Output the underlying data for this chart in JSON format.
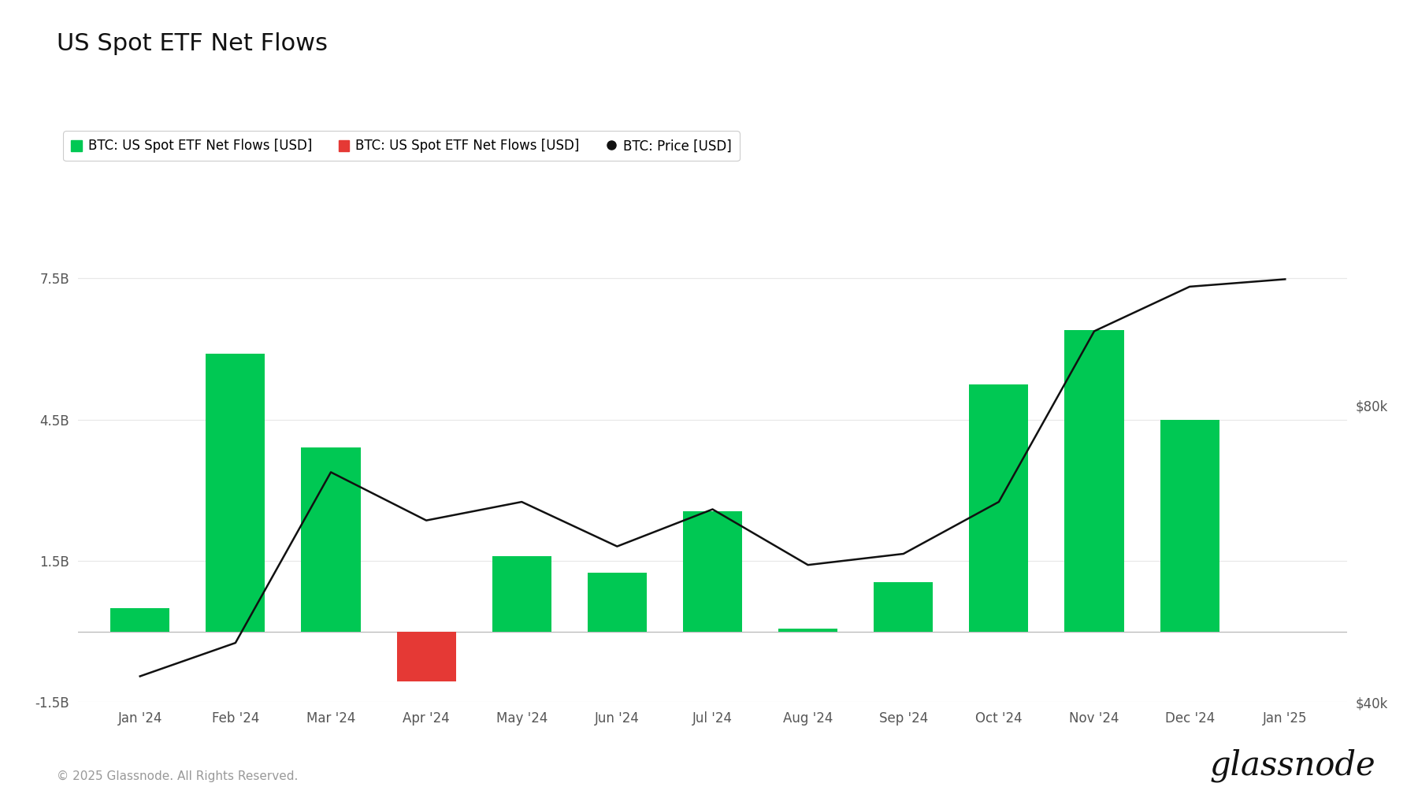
{
  "title": "US Spot ETF Net Flows",
  "legend_items": [
    {
      "label": "BTC: US Spot ETF Net Flows [USD]",
      "color": "#00c853",
      "type": "bar"
    },
    {
      "label": "BTC: US Spot ETF Net Flows [USD]",
      "color": "#e53935",
      "type": "bar"
    },
    {
      "label": "BTC: Price [USD]",
      "color": "#111111",
      "type": "line"
    }
  ],
  "months": [
    "Jan '24",
    "Feb '24",
    "Mar '24",
    "Apr '24",
    "May '24",
    "Jun '24",
    "Jul '24",
    "Aug '24",
    "Sep '24",
    "Oct '24",
    "Nov '24",
    "Dec '24",
    "Jan '25"
  ],
  "bar_values": [
    0.5,
    5.9,
    3.9,
    -1.05,
    1.6,
    1.25,
    2.55,
    0.06,
    1.05,
    5.25,
    6.4,
    4.5,
    null
  ],
  "bar_colors": [
    "#00c853",
    "#00c853",
    "#00c853",
    "#e53935",
    "#00c853",
    "#00c853",
    "#00c853",
    "#00c853",
    "#00c853",
    "#00c853",
    "#00c853",
    "#00c853",
    null
  ],
  "price_x": [
    0,
    1,
    2,
    3,
    4,
    5,
    6,
    7,
    8,
    9,
    10,
    11,
    12
  ],
  "price_values": [
    43500,
    48000,
    71000,
    64500,
    67000,
    61000,
    66000,
    58500,
    60000,
    67000,
    90000,
    96000,
    97000
  ],
  "ylim": [
    -1.5,
    9.0
  ],
  "yticks": [
    -1.5,
    0,
    1.5,
    4.5,
    7.5
  ],
  "ytick_labels": [
    "-1.5B",
    "",
    "1.5B",
    "4.5B",
    "7.5B"
  ],
  "price_ylim": [
    40000,
    106667
  ],
  "price_yticks": [
    40000,
    80000
  ],
  "price_ytick_labels": [
    "$40k",
    "$80k"
  ],
  "background_color": "#ffffff",
  "grid_color": "#e8e8e8",
  "title_fontsize": 22,
  "footer_text": "© 2025 Glassnode. All Rights Reserved.",
  "watermark": "glassnode"
}
